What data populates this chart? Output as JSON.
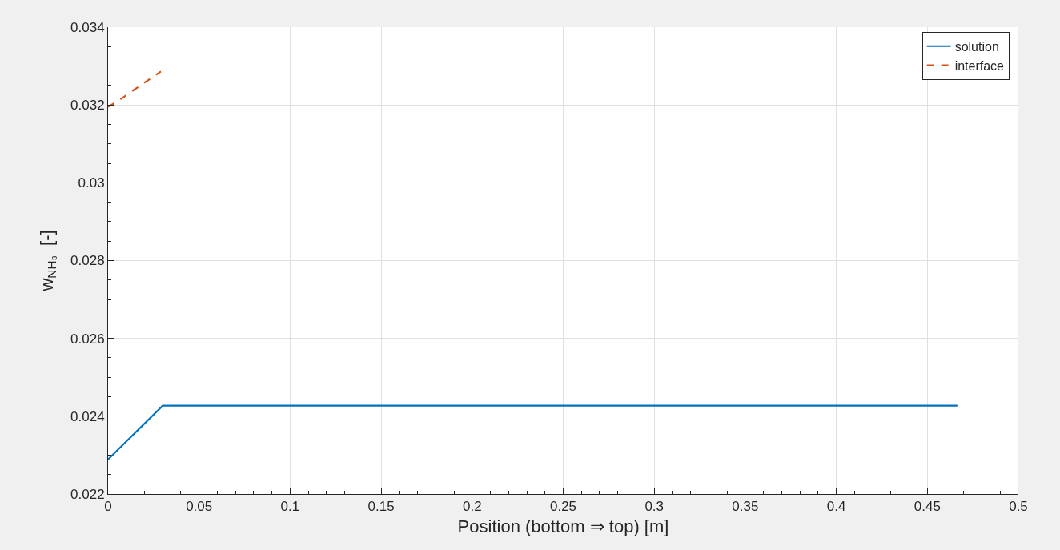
{
  "chart_data": {
    "type": "line",
    "xlabel": "Position (bottom ⇒ top) [m]",
    "ylabel": "w$_{NH₃}$  [-]",
    "xlim": [
      0,
      0.5
    ],
    "xticks": [
      0,
      0.05,
      0.1,
      0.15,
      0.2,
      0.25,
      0.3,
      0.35,
      0.4,
      0.45,
      0.5
    ],
    "ylim": [
      0.022,
      0.034
    ],
    "yticks": [
      0.022,
      0.024,
      0.026,
      0.028,
      0.03,
      0.032,
      0.034
    ],
    "grid": true,
    "legend": "top right",
    "series": [
      {
        "name": "solution",
        "color": "#0072bd",
        "line_style": "solid",
        "x": [
          0,
          0.03,
          0.4665
        ],
        "values": [
          0.02289,
          0.02427,
          0.02427
        ]
      },
      {
        "name": "interface",
        "color": "#d95319",
        "line_style": "dashed",
        "x": [
          0,
          0.0057,
          0.0146,
          0.029
        ],
        "values": [
          0.03195,
          0.03211,
          0.0324,
          0.03286
        ]
      }
    ]
  }
}
